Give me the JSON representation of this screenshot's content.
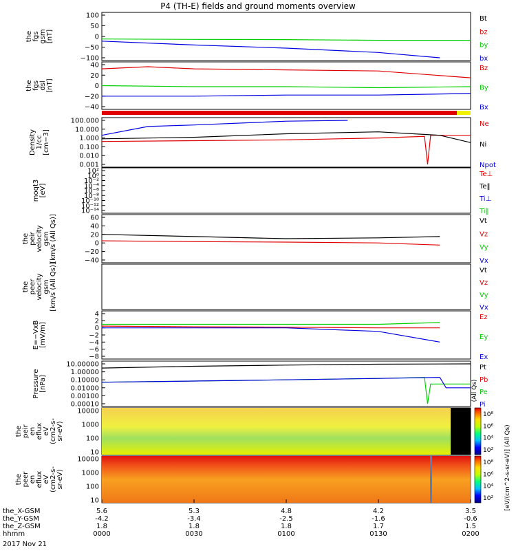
{
  "title": "P4 (TH-E) fields and ground moments overview",
  "colors": {
    "black": "#000000",
    "red": "#e00000",
    "green": "#00d000",
    "blue": "#0000e0",
    "yellow": "#f0f000"
  },
  "x_axis": {
    "rows": [
      {
        "label": "the_X-GSM",
        "values": [
          "5.6",
          "5.3",
          "4.8",
          "4.2",
          "3.5"
        ]
      },
      {
        "label": "the_Y-GSM",
        "values": [
          "-4.2",
          "-3.4",
          "-2.5",
          "-1.6",
          "-0.6"
        ]
      },
      {
        "label": "the_Z-GSM",
        "values": [
          "1.8",
          "1.8",
          "1.8",
          "1.7",
          "1.5"
        ]
      },
      {
        "label": "hhmm",
        "values": [
          "0000",
          "0030",
          "0100",
          "0130",
          "0200"
        ]
      }
    ],
    "date": "2017 Nov 21"
  },
  "panels": [
    {
      "id": "fgs-gsm",
      "ylabel": [
        "the",
        "fgs",
        "gsm",
        "[nT]"
      ],
      "ticks": [
        "100",
        "50",
        "0",
        "−50",
        "−100"
      ],
      "legend": [
        {
          "text": "Bt",
          "color": "#000000"
        },
        {
          "text": "bz",
          "color": "#e00000"
        },
        {
          "text": "by",
          "color": "#00d000"
        },
        {
          "text": "bx",
          "color": "#0000e0"
        }
      ]
    },
    {
      "id": "fgs-dsl",
      "ylabel": [
        "the",
        "fgs",
        "dsl",
        "[nT]"
      ],
      "ticks": [
        "40",
        "20",
        "0",
        "−20",
        "−40"
      ],
      "legend": [
        {
          "text": "Bz",
          "color": "#e00000"
        },
        {
          "text": "By",
          "color": "#00d000"
        },
        {
          "text": "Bx",
          "color": "#0000e0"
        }
      ]
    },
    {
      "id": "density",
      "ylabel": [
        "Density",
        "1/cc",
        "[cm−3]"
      ],
      "ticks": [
        "100.000",
        "10.000",
        "1.000",
        "0.100",
        "0.010",
        "0.001"
      ],
      "legend": [
        {
          "text": "Ne",
          "color": "#e00000"
        },
        {
          "text": "Ni",
          "color": "#000000"
        },
        {
          "text": "Npot",
          "color": "#0000e0"
        }
      ]
    },
    {
      "id": "temperature",
      "ylabel": [
        "moqt3",
        "[eV]"
      ],
      "ticks": [
        "10²",
        "10⁰",
        "10⁻²",
        "10⁻⁴",
        "10⁻⁶",
        "10⁻⁸",
        "10⁻¹⁰",
        "10⁻¹²",
        "10⁻¹⁴"
      ],
      "legend": [
        {
          "text": "Te⊥",
          "color": "#e00000"
        },
        {
          "text": "Te‖",
          "color": "#000000"
        },
        {
          "text": "Ti⊥",
          "color": "#0000e0"
        },
        {
          "text": "Ti‖",
          "color": "#00d000"
        }
      ]
    },
    {
      "id": "peir-velocity",
      "ylabel": [
        "the",
        "peir",
        "velocity",
        "gsm",
        "[km/s (All Qs)]"
      ],
      "ticks": [
        "60",
        "40",
        "20",
        "0",
        "−20",
        "−40"
      ],
      "legend": [
        {
          "text": "Vt",
          "color": "#000000"
        },
        {
          "text": "Vz",
          "color": "#e00000"
        },
        {
          "text": "Vy",
          "color": "#00d000"
        },
        {
          "text": "Vx",
          "color": "#0000e0"
        }
      ]
    },
    {
      "id": "peer-velocity",
      "ylabel": [
        "the",
        "peer",
        "velocity",
        "gsm",
        "[km/s (All Qs)]"
      ],
      "ticks": [],
      "legend": [
        {
          "text": "Vt",
          "color": "#000000"
        },
        {
          "text": "Vz",
          "color": "#e00000"
        },
        {
          "text": "Vy",
          "color": "#00d000"
        },
        {
          "text": "Vx",
          "color": "#0000e0"
        }
      ]
    },
    {
      "id": "efield",
      "ylabel": [
        "E=−VxB",
        "[mV/m]"
      ],
      "ticks": [
        "4",
        "2",
        "0",
        "−2",
        "−4",
        "−6",
        "−8"
      ],
      "legend": [
        {
          "text": "Ez",
          "color": "#e00000"
        },
        {
          "text": "Ey",
          "color": "#00d000"
        },
        {
          "text": "Ex",
          "color": "#0000e0"
        }
      ]
    },
    {
      "id": "pressure",
      "ylabel": [
        "Pressure",
        "[nPa]"
      ],
      "ticks": [
        "10.00000",
        "1.00000",
        "0.10000",
        "0.01000",
        "0.00100",
        "0.00010"
      ],
      "legend": [
        {
          "text": "Pt",
          "color": "#000000"
        },
        {
          "text": "Pb",
          "color": "#e00000"
        },
        {
          "text": "Pe",
          "color": "#00d000"
        },
        {
          "text": "Pi",
          "color": "#0000e0"
        }
      ],
      "side_note": "(All Qs)"
    },
    {
      "id": "peir-spec",
      "ylabel": [
        "the",
        "peir",
        "en",
        "eflux",
        "eV",
        "(cm2-s-",
        "sr-eV)"
      ],
      "ticks": [
        "10000",
        "1000",
        "100",
        "10"
      ]
    },
    {
      "id": "peer-spec",
      "ylabel": [
        "the",
        "peer",
        "en",
        "eflux",
        "eV",
        "(cm2-s-",
        "sr-eV)"
      ],
      "ticks": [
        "10000",
        "1000",
        "100",
        "10"
      ]
    }
  ],
  "colorbar": {
    "ticks_top": [
      "10⁸",
      "10⁶",
      "10⁴",
      "10²"
    ],
    "ticks_bottom": [
      "10⁸",
      "10⁶",
      "10⁴",
      "10²"
    ],
    "label": "[eV/(cm^2-s-sr-eV)] (All Qs)"
  },
  "chart_data": {
    "type": "line",
    "title": "P4 (TH-E) fields and ground moments overview",
    "x_label": "hhmm",
    "x_ticks": [
      "0000",
      "0030",
      "0100",
      "0130",
      "0200"
    ],
    "x_range_hhmm": [
      "0000",
      "0200"
    ],
    "series": [
      {
        "panel": "fgs-gsm",
        "name": "by",
        "points": [
          [
            0,
            -12
          ],
          [
            30,
            -14
          ],
          [
            60,
            -15
          ],
          [
            90,
            -18
          ],
          [
            120,
            -18
          ]
        ]
      },
      {
        "panel": "fgs-gsm",
        "name": "bx",
        "points": [
          [
            0,
            -22
          ],
          [
            30,
            -40
          ],
          [
            60,
            -55
          ],
          [
            90,
            -75
          ],
          [
            110,
            -100
          ]
        ]
      },
      {
        "panel": "fgs-dsl",
        "name": "Bz",
        "points": [
          [
            0,
            32
          ],
          [
            15,
            36
          ],
          [
            30,
            32
          ],
          [
            60,
            30
          ],
          [
            90,
            28
          ],
          [
            120,
            15
          ]
        ]
      },
      {
        "panel": "fgs-dsl",
        "name": "By",
        "points": [
          [
            0,
            0
          ],
          [
            30,
            -2
          ],
          [
            60,
            -2
          ],
          [
            90,
            -4
          ],
          [
            120,
            -2
          ]
        ]
      },
      {
        "panel": "fgs-dsl",
        "name": "Bx",
        "points": [
          [
            0,
            -20
          ],
          [
            30,
            -20
          ],
          [
            60,
            -18
          ],
          [
            90,
            -18
          ],
          [
            120,
            -15
          ]
        ]
      },
      {
        "panel": "density",
        "name": "Ne",
        "points": [
          [
            0,
            0.4
          ],
          [
            30,
            0.5
          ],
          [
            60,
            0.6
          ],
          [
            90,
            1.0
          ],
          [
            105,
            1.5
          ],
          [
            106,
            0.001
          ],
          [
            107,
            2.0
          ],
          [
            120,
            2.0
          ]
        ]
      },
      {
        "panel": "density",
        "name": "Ni",
        "points": [
          [
            0,
            0.8
          ],
          [
            30,
            1.2
          ],
          [
            60,
            3.0
          ],
          [
            90,
            5.0
          ],
          [
            110,
            2.0
          ],
          [
            120,
            0.3
          ]
        ]
      },
      {
        "panel": "density",
        "name": "Npot",
        "points": [
          [
            0,
            2.0
          ],
          [
            15,
            20
          ],
          [
            30,
            30
          ],
          [
            60,
            80
          ],
          [
            80,
            100
          ]
        ]
      },
      {
        "panel": "peir-velocity",
        "name": "Vt",
        "points": [
          [
            0,
            20
          ],
          [
            30,
            15
          ],
          [
            60,
            10
          ],
          [
            90,
            12
          ],
          [
            110,
            15
          ]
        ]
      },
      {
        "panel": "peir-velocity",
        "name": "Vz",
        "points": [
          [
            0,
            5
          ],
          [
            30,
            3
          ],
          [
            60,
            2
          ],
          [
            90,
            0
          ],
          [
            110,
            -5
          ]
        ]
      },
      {
        "panel": "efield",
        "name": "Ez",
        "points": [
          [
            0,
            0.5
          ],
          [
            30,
            0.3
          ],
          [
            60,
            0.2
          ],
          [
            90,
            0
          ],
          [
            110,
            0
          ]
        ]
      },
      {
        "panel": "efield",
        "name": "Ey",
        "points": [
          [
            0,
            1
          ],
          [
            30,
            1
          ],
          [
            60,
            1
          ],
          [
            90,
            1
          ],
          [
            110,
            1.5
          ]
        ]
      },
      {
        "panel": "efield",
        "name": "Ex",
        "points": [
          [
            0,
            0
          ],
          [
            30,
            0
          ],
          [
            60,
            0
          ],
          [
            90,
            -1
          ],
          [
            110,
            -4
          ]
        ]
      },
      {
        "panel": "pressure",
        "name": "Pt",
        "points": [
          [
            0,
            3
          ],
          [
            30,
            5
          ],
          [
            60,
            7
          ],
          [
            90,
            9
          ],
          [
            120,
            10
          ]
        ]
      },
      {
        "panel": "pressure",
        "name": "Pe",
        "points": [
          [
            0,
            0.05
          ],
          [
            30,
            0.07
          ],
          [
            60,
            0.1
          ],
          [
            90,
            0.15
          ],
          [
            105,
            0.2
          ],
          [
            106,
            0.0001
          ],
          [
            107,
            0.03
          ],
          [
            120,
            0.03
          ]
        ]
      },
      {
        "panel": "pressure",
        "name": "Pi",
        "points": [
          [
            0,
            0.05
          ],
          [
            30,
            0.07
          ],
          [
            60,
            0.1
          ],
          [
            90,
            0.15
          ],
          [
            110,
            0.2
          ],
          [
            112,
            0.01
          ],
          [
            120,
            0.01
          ]
        ]
      }
    ]
  }
}
